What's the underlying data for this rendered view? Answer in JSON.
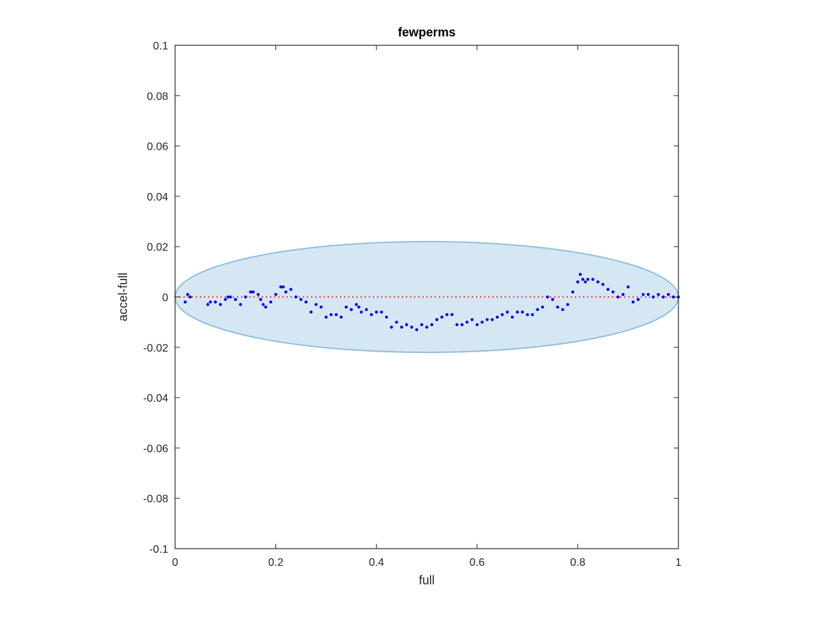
{
  "chart_data": {
    "type": "scatter",
    "title": "fewperms",
    "xlabel": "full",
    "ylabel": "accel-full",
    "xlim": [
      0,
      1
    ],
    "ylim": [
      -0.1,
      0.1
    ],
    "xticks": [
      0,
      0.2,
      0.4,
      0.6,
      0.8,
      1
    ],
    "xtick_labels": [
      "0",
      "0.2",
      "0.4",
      "0.6",
      "0.8",
      "1"
    ],
    "yticks": [
      0.1,
      0.08,
      0.06,
      0.04,
      0.02,
      0,
      -0.02,
      -0.04,
      -0.06,
      -0.08,
      -0.1
    ],
    "ytick_labels": [
      "0.1",
      "0.08",
      "0.06",
      "0.04",
      "0.02",
      "0",
      "-0.02",
      "-0.04",
      "-0.06",
      "-0.08",
      "-0.1"
    ],
    "grid": false,
    "box": true,
    "reference_line": {
      "y": 0,
      "style": "dotted",
      "color": "#ff0000"
    },
    "ellipse": {
      "center": [
        0.5,
        0
      ],
      "x_radius": 0.5,
      "y_radius": 0.022,
      "fill": "#d6e7f4",
      "stroke": "#8fbfe0"
    },
    "series": [
      {
        "marker_color": "#0000ff",
        "x": [
          0.02,
          0.025,
          0.03,
          0.065,
          0.07,
          0.08,
          0.09,
          0.1,
          0.105,
          0.11,
          0.12,
          0.13,
          0.14,
          0.15,
          0.155,
          0.165,
          0.17,
          0.175,
          0.18,
          0.19,
          0.2,
          0.21,
          0.215,
          0.22,
          0.23,
          0.24,
          0.25,
          0.26,
          0.27,
          0.28,
          0.29,
          0.3,
          0.31,
          0.32,
          0.33,
          0.34,
          0.35,
          0.36,
          0.365,
          0.37,
          0.38,
          0.39,
          0.4,
          0.41,
          0.42,
          0.43,
          0.44,
          0.45,
          0.46,
          0.47,
          0.48,
          0.49,
          0.5,
          0.51,
          0.52,
          0.53,
          0.54,
          0.55,
          0.56,
          0.57,
          0.58,
          0.59,
          0.6,
          0.61,
          0.62,
          0.63,
          0.64,
          0.65,
          0.66,
          0.67,
          0.68,
          0.69,
          0.7,
          0.71,
          0.72,
          0.73,
          0.74,
          0.75,
          0.76,
          0.77,
          0.78,
          0.79,
          0.8,
          0.805,
          0.81,
          0.815,
          0.82,
          0.83,
          0.84,
          0.85,
          0.86,
          0.87,
          0.88,
          0.89,
          0.9,
          0.91,
          0.92,
          0.93,
          0.94,
          0.95,
          0.96,
          0.97,
          0.98,
          0.99,
          1.0
        ],
        "y": [
          -0.002,
          0.001,
          0.0,
          -0.003,
          -0.002,
          -0.002,
          -0.003,
          -0.001,
          0.0,
          0.0,
          -0.001,
          -0.003,
          0.0,
          0.002,
          0.002,
          0.001,
          -0.001,
          -0.003,
          -0.004,
          -0.002,
          0.001,
          0.004,
          0.004,
          0.002,
          0.003,
          0.0,
          -0.001,
          -0.002,
          -0.006,
          -0.003,
          -0.004,
          -0.008,
          -0.007,
          -0.007,
          -0.008,
          -0.004,
          -0.005,
          -0.003,
          -0.004,
          -0.006,
          -0.005,
          -0.007,
          -0.006,
          -0.006,
          -0.008,
          -0.012,
          -0.01,
          -0.012,
          -0.011,
          -0.012,
          -0.013,
          -0.011,
          -0.012,
          -0.011,
          -0.009,
          -0.008,
          -0.007,
          -0.007,
          -0.011,
          -0.011,
          -0.01,
          -0.009,
          -0.011,
          -0.01,
          -0.009,
          -0.009,
          -0.008,
          -0.007,
          -0.006,
          -0.008,
          -0.006,
          -0.006,
          -0.007,
          -0.007,
          -0.005,
          -0.004,
          0.0,
          -0.001,
          -0.004,
          -0.005,
          -0.003,
          0.002,
          0.006,
          0.009,
          0.007,
          0.006,
          0.007,
          0.007,
          0.006,
          0.005,
          0.003,
          0.002,
          0.0,
          0.001,
          0.004,
          -0.002,
          -0.001,
          0.001,
          0.001,
          0.0,
          0.001,
          0.0,
          0.001,
          0.0,
          0.0
        ]
      }
    ]
  }
}
